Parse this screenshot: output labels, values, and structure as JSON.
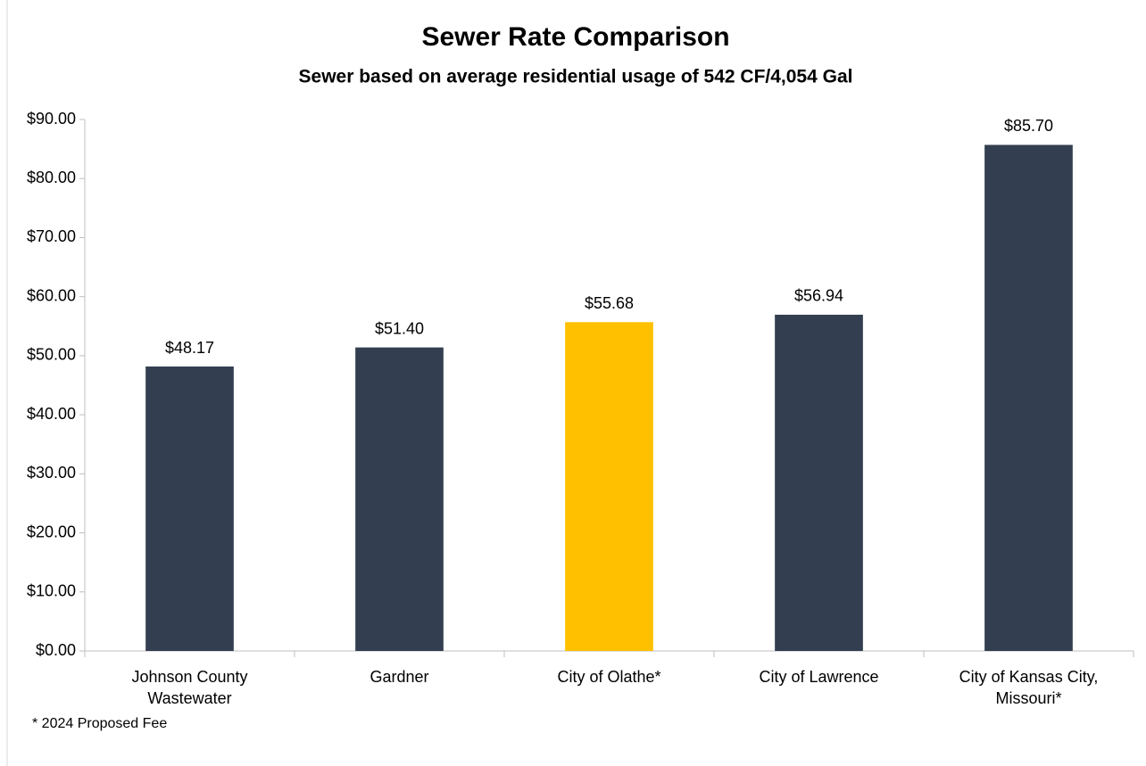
{
  "chart_data": {
    "type": "bar",
    "title": "Sewer Rate Comparison",
    "subtitle": "Sewer based on average residential usage of 542 CF/4,054 Gal",
    "categories": [
      "Johnson County Wastewater",
      "Gardner",
      "City of Olathe*",
      "City of Lawrence",
      "City of Kansas City, Missouri*"
    ],
    "values": [
      48.17,
      51.4,
      55.68,
      56.94,
      85.7
    ],
    "value_labels": [
      "$48.17",
      "$51.40",
      "$55.68",
      "$56.94",
      "$85.70"
    ],
    "colors": [
      "#333f50",
      "#333f50",
      "#ffc000",
      "#333f50",
      "#333f50"
    ],
    "ylim": [
      0,
      90
    ],
    "yticks": [
      {
        "value": 0,
        "label": "$0.00"
      },
      {
        "value": 10,
        "label": "$10.00"
      },
      {
        "value": 20,
        "label": "$20.00"
      },
      {
        "value": 30,
        "label": "$30.00"
      },
      {
        "value": 40,
        "label": "$40.00"
      },
      {
        "value": 50,
        "label": "$50.00"
      },
      {
        "value": 60,
        "label": "$60.00"
      },
      {
        "value": 70,
        "label": "$70.00"
      },
      {
        "value": 80,
        "label": "$80.00"
      },
      {
        "value": 90,
        "label": "$90.00"
      }
    ],
    "grid": false,
    "footnote": "* 2024 Proposed Fee"
  }
}
